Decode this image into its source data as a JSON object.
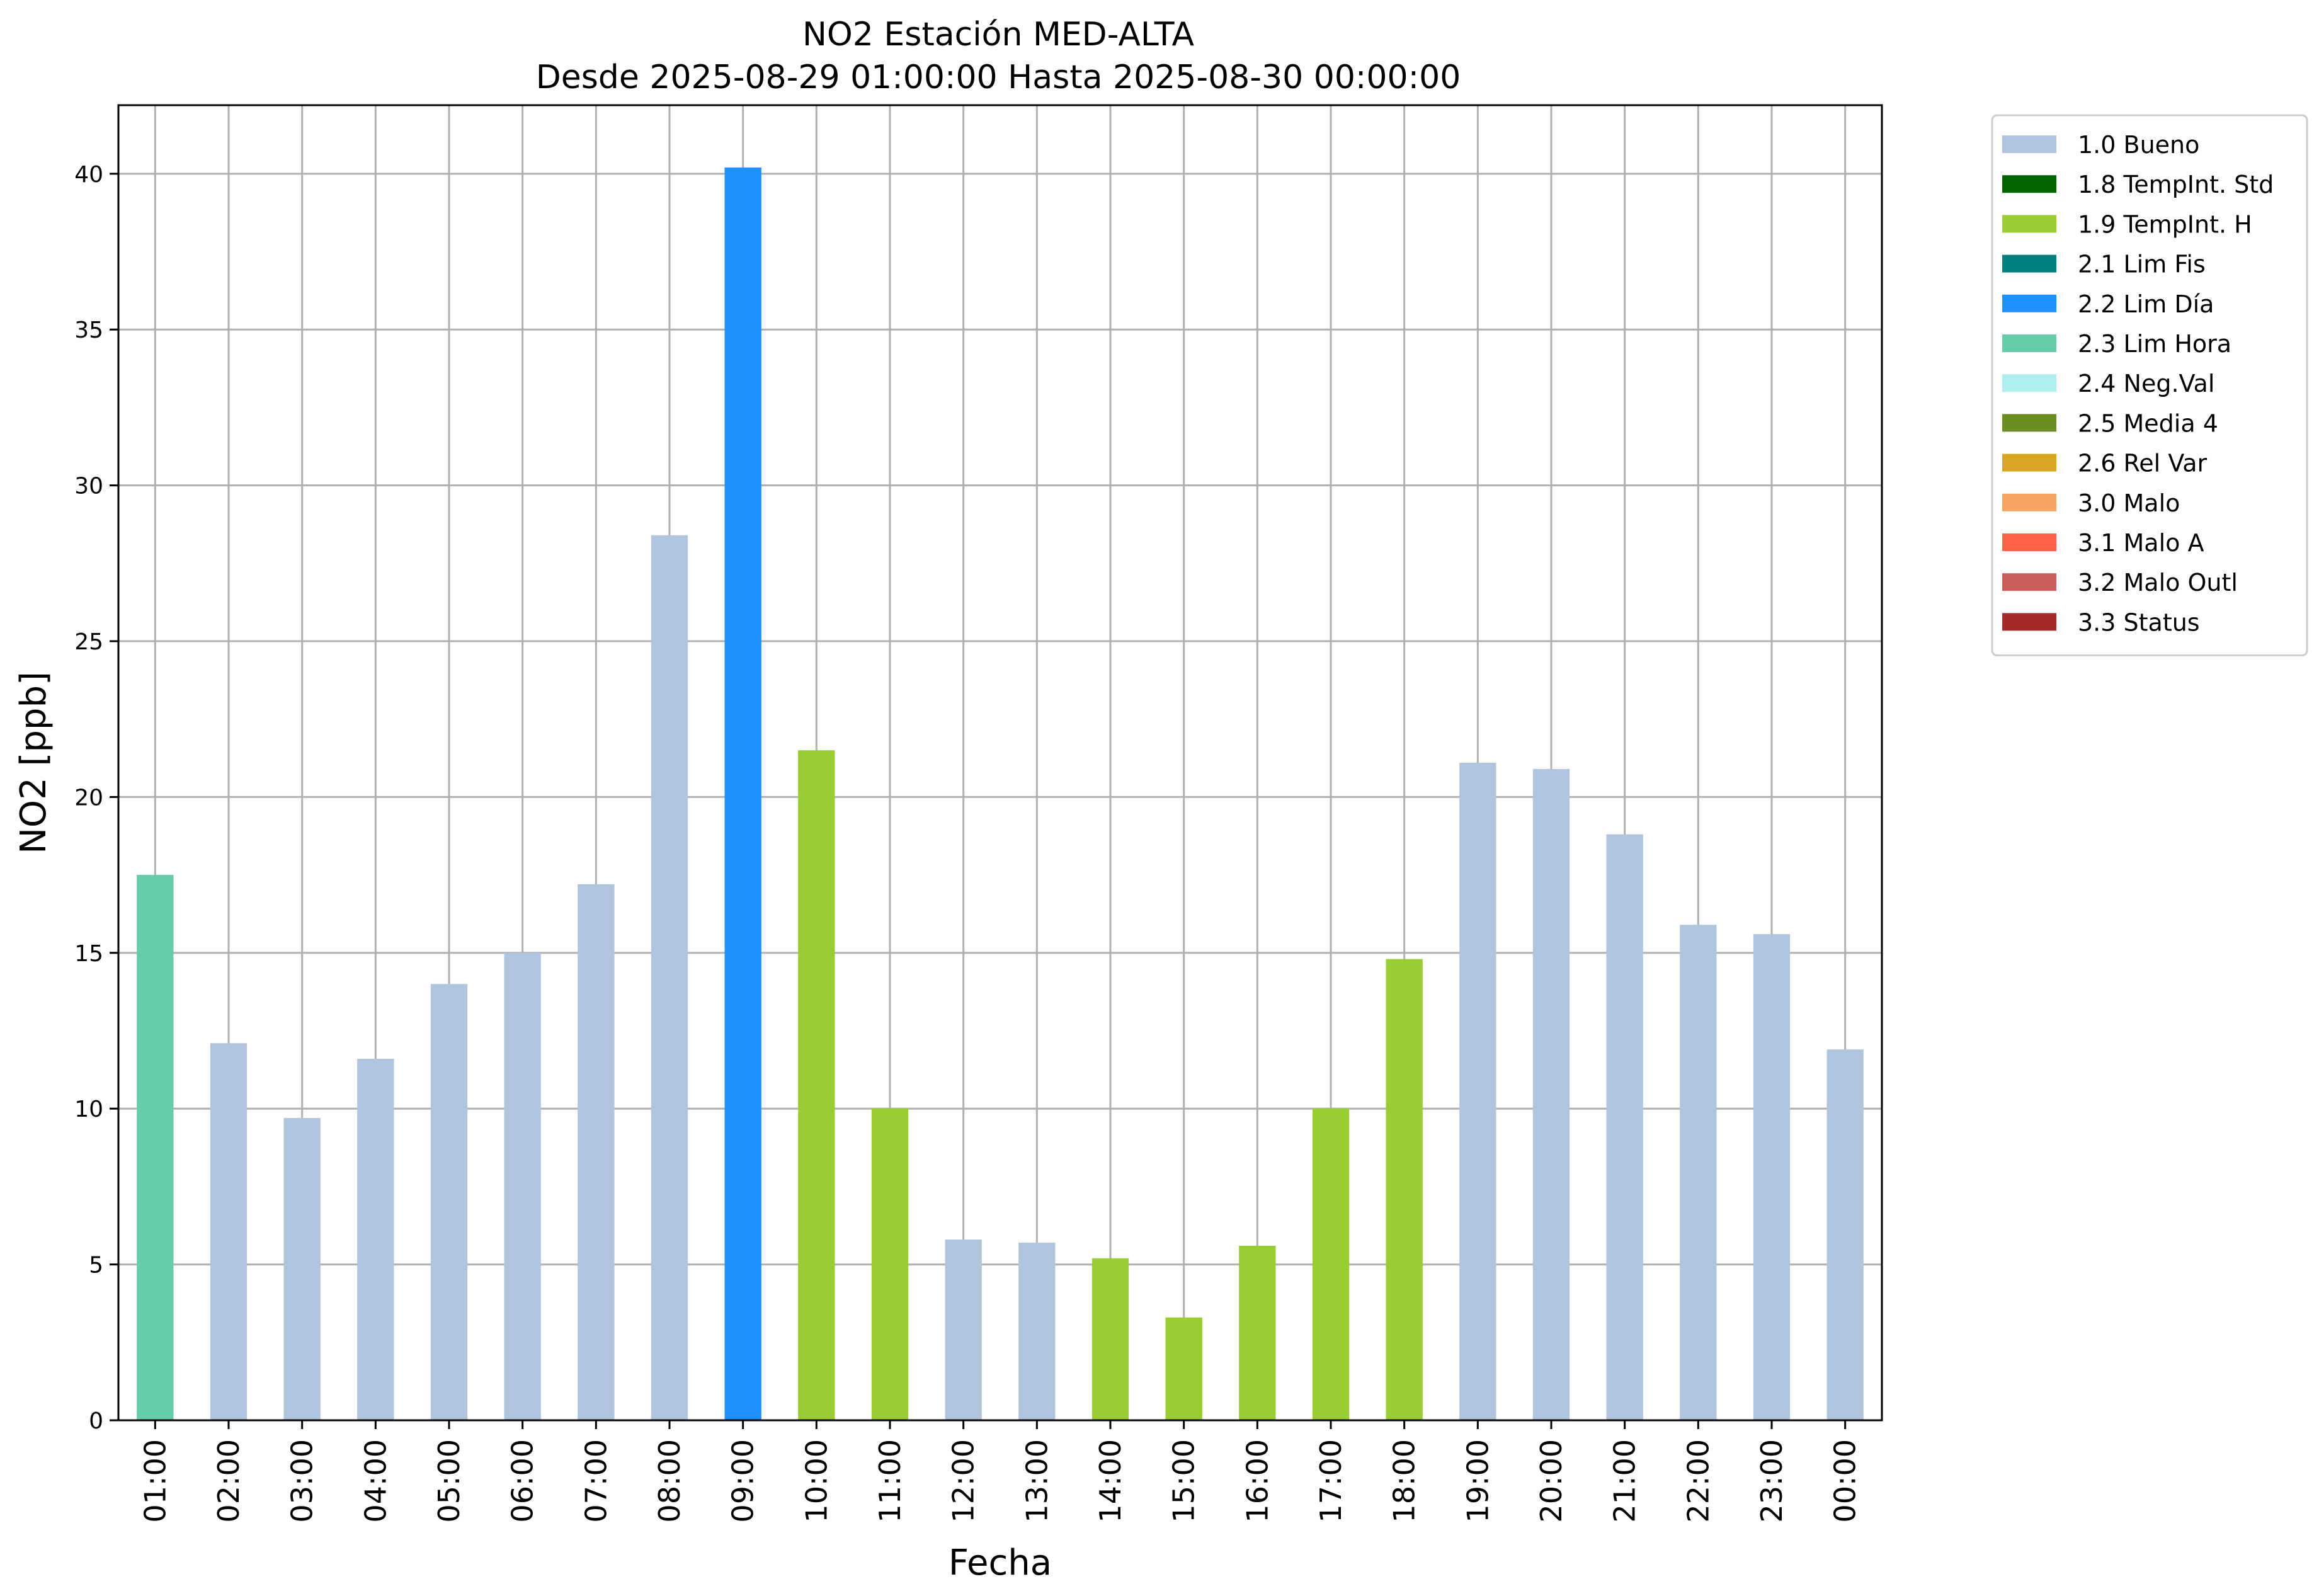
{
  "chart_data": {
    "type": "bar",
    "title": "NO2 Estación MED-ALTA",
    "subtitle": "Desde 2025-08-29 01:00:00 Hasta 2025-08-30 00:00:00",
    "xlabel": "Fecha",
    "ylabel": "NO2 [ppb]",
    "ylim": [
      0,
      42.2
    ],
    "yticks": [
      0,
      5,
      10,
      15,
      20,
      25,
      30,
      35,
      40
    ],
    "grid": true,
    "legend_position": "outside-top-right",
    "categories": [
      "01:00",
      "02:00",
      "03:00",
      "04:00",
      "05:00",
      "06:00",
      "07:00",
      "08:00",
      "09:00",
      "10:00",
      "11:00",
      "12:00",
      "13:00",
      "14:00",
      "15:00",
      "16:00",
      "17:00",
      "18:00",
      "19:00",
      "20:00",
      "21:00",
      "22:00",
      "23:00",
      "00:00"
    ],
    "values": [
      17.5,
      12.1,
      9.7,
      11.6,
      14.0,
      15.0,
      17.2,
      28.4,
      40.2,
      21.5,
      10.0,
      5.8,
      5.7,
      5.2,
      3.3,
      5.6,
      10.0,
      14.8,
      21.1,
      20.9,
      18.8,
      15.9,
      15.6,
      11.9
    ],
    "flags": [
      "2.3 Lim Hora",
      "1.0 Bueno",
      "1.0 Bueno",
      "1.0 Bueno",
      "1.0 Bueno",
      "1.0 Bueno",
      "1.0 Bueno",
      "1.0 Bueno",
      "2.2 Lim Día",
      "1.9 TempInt. H",
      "1.9 TempInt. H",
      "1.0 Bueno",
      "1.0 Bueno",
      "1.9 TempInt. H",
      "1.9 TempInt. H",
      "1.9 TempInt. H",
      "1.9 TempInt. H",
      "1.9 TempInt. H",
      "1.0 Bueno",
      "1.0 Bueno",
      "1.0 Bueno",
      "1.0 Bueno",
      "1.0 Bueno",
      "1.0 Bueno"
    ],
    "legend": [
      {
        "label": "1.0 Bueno",
        "color": "#b0c4de"
      },
      {
        "label": "1.8 TempInt. Std",
        "color": "#006400"
      },
      {
        "label": "1.9 TempInt. H",
        "color": "#9acd32"
      },
      {
        "label": "2.1 Lim Fis",
        "color": "#008080"
      },
      {
        "label": "2.2 Lim Día",
        "color": "#1e90ff"
      },
      {
        "label": "2.3 Lim Hora",
        "color": "#66cdaa"
      },
      {
        "label": "2.4 Neg.Val",
        "color": "#afeeee"
      },
      {
        "label": "2.5 Media 4",
        "color": "#6b8e23"
      },
      {
        "label": "2.6 Rel Var",
        "color": "#daa520"
      },
      {
        "label": "3.0 Malo",
        "color": "#f4a460"
      },
      {
        "label": "3.1 Malo A",
        "color": "#ff6347"
      },
      {
        "label": "3.2 Malo Outl",
        "color": "#cd5c5c"
      },
      {
        "label": "3.3 Status",
        "color": "#a52a2a"
      }
    ]
  }
}
